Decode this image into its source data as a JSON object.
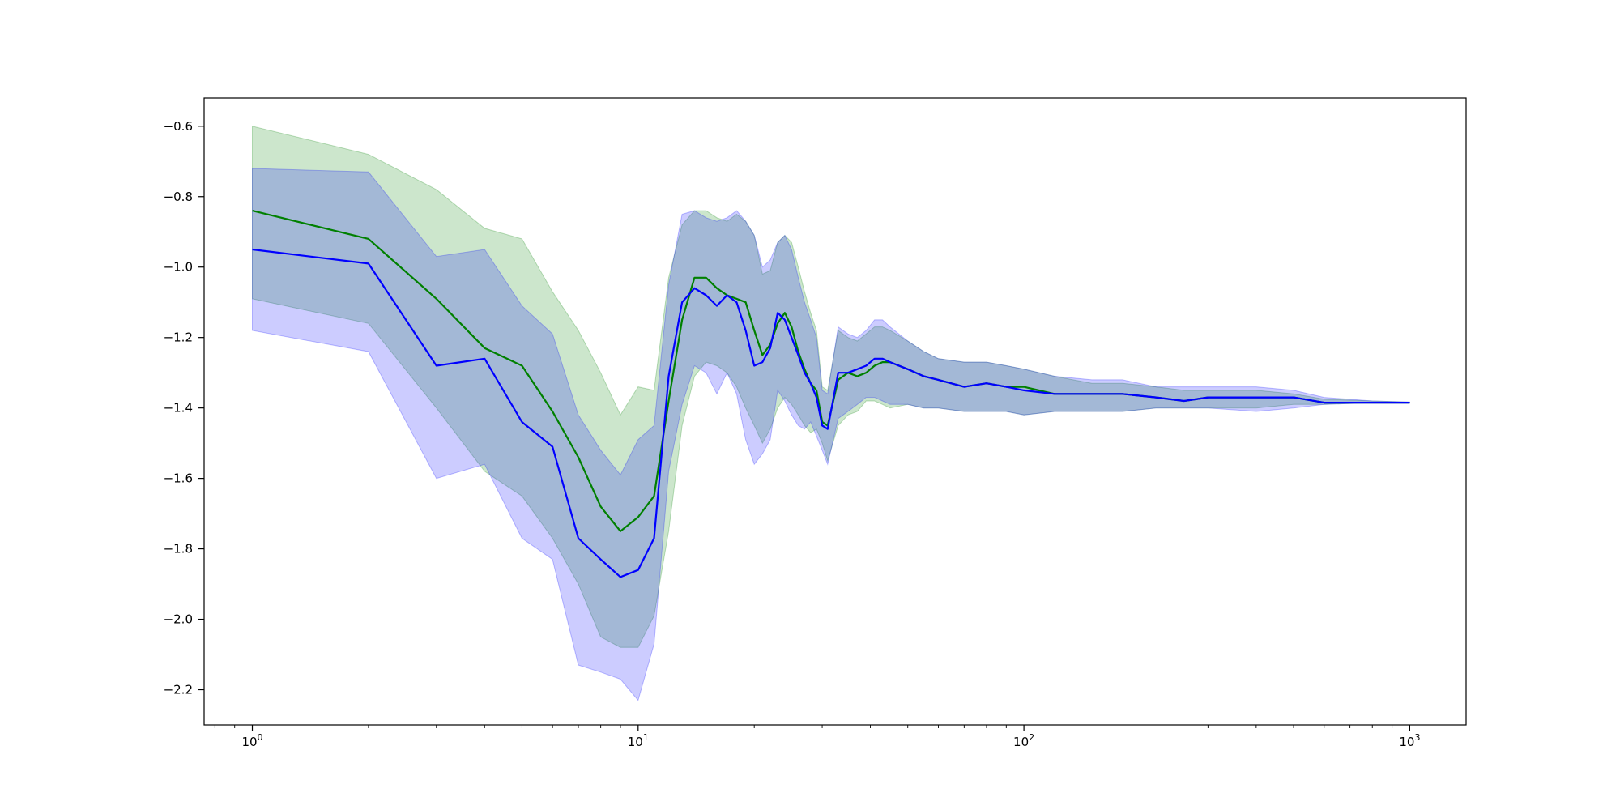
{
  "chart_data": {
    "type": "line",
    "title": "",
    "xlabel": "",
    "ylabel": "",
    "xscale": "log",
    "xlim": [
      0.75,
      1400
    ],
    "ylim": [
      -2.3,
      -0.52
    ],
    "grid": false,
    "legend": "none",
    "x_tick_labels": [
      {
        "value": 1,
        "base": "10",
        "exp": "0"
      },
      {
        "value": 10,
        "base": "10",
        "exp": "1"
      },
      {
        "value": 100,
        "base": "10",
        "exp": "2"
      },
      {
        "value": 1000,
        "base": "10",
        "exp": "3"
      }
    ],
    "y_ticks": [
      -0.6,
      -0.8,
      -1.0,
      -1.2,
      -1.4,
      -1.6,
      -1.8,
      -2.0,
      -2.2
    ],
    "y_tick_labels": [
      "−0.6",
      "−0.8",
      "−1.0",
      "−1.2",
      "−1.4",
      "−1.6",
      "−1.8",
      "−2.0",
      "−2.2"
    ],
    "series": [
      {
        "color": "#008000",
        "band_color": "#008000",
        "band_opacity": 0.2,
        "x": [
          1,
          2,
          3,
          4,
          5,
          6,
          7,
          8,
          9,
          10,
          11,
          12,
          13,
          14,
          15,
          16,
          17,
          18,
          19,
          20,
          21,
          22,
          23,
          24,
          25,
          26,
          27,
          28,
          29,
          30,
          31,
          33,
          35,
          37,
          39,
          41,
          43,
          45,
          50,
          55,
          60,
          70,
          80,
          90,
          100,
          120,
          150,
          180,
          220,
          260,
          300,
          400,
          500,
          600,
          800,
          1000
        ],
        "y": [
          -0.84,
          -0.92,
          -1.09,
          -1.23,
          -1.28,
          -1.41,
          -1.54,
          -1.68,
          -1.75,
          -1.71,
          -1.65,
          -1.38,
          -1.15,
          -1.03,
          -1.03,
          -1.06,
          -1.08,
          -1.09,
          -1.1,
          -1.18,
          -1.25,
          -1.22,
          -1.16,
          -1.13,
          -1.17,
          -1.24,
          -1.29,
          -1.33,
          -1.35,
          -1.44,
          -1.45,
          -1.32,
          -1.3,
          -1.31,
          -1.3,
          -1.28,
          -1.27,
          -1.27,
          -1.29,
          -1.31,
          -1.32,
          -1.34,
          -1.33,
          -1.34,
          -1.34,
          -1.36,
          -1.36,
          -1.36,
          -1.37,
          -1.38,
          -1.37,
          -1.37,
          -1.37,
          -1.385,
          -1.385,
          -1.385
        ],
        "upper": [
          -0.6,
          -0.68,
          -0.78,
          -0.89,
          -0.92,
          -1.07,
          -1.18,
          -1.3,
          -1.42,
          -1.34,
          -1.35,
          -1.03,
          -0.88,
          -0.84,
          -0.84,
          -0.86,
          -0.87,
          -0.85,
          -0.87,
          -0.91,
          -1.02,
          -1.01,
          -0.93,
          -0.91,
          -0.93,
          -1.0,
          -1.07,
          -1.13,
          -1.18,
          -1.34,
          -1.35,
          -1.18,
          -1.2,
          -1.21,
          -1.19,
          -1.17,
          -1.17,
          -1.18,
          -1.21,
          -1.24,
          -1.26,
          -1.27,
          -1.27,
          -1.28,
          -1.29,
          -1.31,
          -1.33,
          -1.33,
          -1.34,
          -1.35,
          -1.35,
          -1.35,
          -1.36,
          -1.375,
          -1.38,
          -1.383
        ],
        "lower": [
          -1.09,
          -1.16,
          -1.4,
          -1.58,
          -1.65,
          -1.77,
          -1.9,
          -2.05,
          -2.08,
          -2.08,
          -1.99,
          -1.75,
          -1.45,
          -1.31,
          -1.27,
          -1.28,
          -1.3,
          -1.34,
          -1.4,
          -1.45,
          -1.5,
          -1.46,
          -1.4,
          -1.37,
          -1.39,
          -1.42,
          -1.45,
          -1.47,
          -1.46,
          -1.5,
          -1.55,
          -1.45,
          -1.42,
          -1.41,
          -1.38,
          -1.38,
          -1.39,
          -1.4,
          -1.39,
          -1.4,
          -1.4,
          -1.41,
          -1.41,
          -1.41,
          -1.42,
          -1.41,
          -1.41,
          -1.41,
          -1.4,
          -1.4,
          -1.4,
          -1.4,
          -1.39,
          -1.39,
          -1.385,
          -1.385
        ]
      },
      {
        "color": "#0000ff",
        "band_color": "#0000ff",
        "band_opacity": 0.2,
        "x": [
          1,
          2,
          3,
          4,
          5,
          6,
          7,
          8,
          9,
          10,
          11,
          12,
          13,
          14,
          15,
          16,
          17,
          18,
          19,
          20,
          21,
          22,
          23,
          24,
          25,
          26,
          27,
          28,
          29,
          30,
          31,
          33,
          35,
          37,
          39,
          41,
          43,
          45,
          50,
          55,
          60,
          70,
          80,
          90,
          100,
          120,
          150,
          180,
          220,
          260,
          300,
          400,
          500,
          600,
          800,
          1000
        ],
        "y": [
          -0.95,
          -0.99,
          -1.28,
          -1.26,
          -1.44,
          -1.51,
          -1.77,
          -1.83,
          -1.88,
          -1.86,
          -1.77,
          -1.31,
          -1.1,
          -1.06,
          -1.08,
          -1.11,
          -1.08,
          -1.1,
          -1.18,
          -1.28,
          -1.27,
          -1.23,
          -1.13,
          -1.15,
          -1.2,
          -1.25,
          -1.3,
          -1.33,
          -1.37,
          -1.45,
          -1.46,
          -1.3,
          -1.3,
          -1.29,
          -1.28,
          -1.26,
          -1.26,
          -1.27,
          -1.29,
          -1.31,
          -1.32,
          -1.34,
          -1.33,
          -1.34,
          -1.35,
          -1.36,
          -1.36,
          -1.36,
          -1.37,
          -1.38,
          -1.37,
          -1.37,
          -1.37,
          -1.385,
          -1.385,
          -1.385
        ],
        "upper": [
          -0.72,
          -0.73,
          -0.97,
          -0.95,
          -1.11,
          -1.19,
          -1.42,
          -1.52,
          -1.59,
          -1.49,
          -1.45,
          -1.05,
          -0.85,
          -0.84,
          -0.86,
          -0.87,
          -0.86,
          -0.84,
          -0.87,
          -0.91,
          -1.0,
          -0.98,
          -0.93,
          -0.91,
          -0.95,
          -1.03,
          -1.1,
          -1.15,
          -1.2,
          -1.35,
          -1.36,
          -1.17,
          -1.19,
          -1.2,
          -1.18,
          -1.15,
          -1.15,
          -1.17,
          -1.21,
          -1.24,
          -1.26,
          -1.27,
          -1.27,
          -1.28,
          -1.29,
          -1.31,
          -1.32,
          -1.32,
          -1.34,
          -1.34,
          -1.34,
          -1.34,
          -1.35,
          -1.37,
          -1.38,
          -1.383
        ],
        "lower": [
          -1.18,
          -1.24,
          -1.6,
          -1.56,
          -1.77,
          -1.83,
          -2.13,
          -2.15,
          -2.17,
          -2.23,
          -2.07,
          -1.58,
          -1.39,
          -1.28,
          -1.3,
          -1.36,
          -1.3,
          -1.36,
          -1.49,
          -1.56,
          -1.53,
          -1.49,
          -1.35,
          -1.38,
          -1.42,
          -1.45,
          -1.46,
          -1.44,
          -1.48,
          -1.52,
          -1.56,
          -1.43,
          -1.41,
          -1.39,
          -1.37,
          -1.37,
          -1.38,
          -1.39,
          -1.39,
          -1.4,
          -1.4,
          -1.41,
          -1.41,
          -1.41,
          -1.42,
          -1.41,
          -1.41,
          -1.41,
          -1.4,
          -1.4,
          -1.4,
          -1.41,
          -1.4,
          -1.39,
          -1.385,
          -1.385
        ]
      }
    ]
  }
}
